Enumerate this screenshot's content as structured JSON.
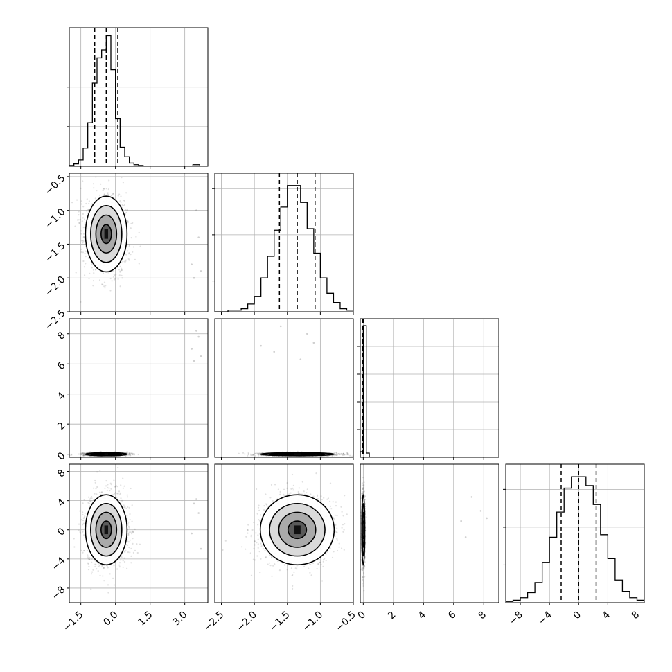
{
  "chart_data": {
    "type": "corner",
    "parameters": 4,
    "panels": [
      {
        "kind": "histogram",
        "row": 0,
        "col": 0,
        "edges": [
          -2.0,
          -1.8,
          -1.6,
          -1.4,
          -1.2,
          -1.0,
          -0.8,
          -0.6,
          -0.4,
          -0.2,
          0.0,
          0.2,
          0.4,
          0.6,
          0.8,
          1.0,
          1.2
        ],
        "counts": [
          1,
          3,
          8,
          23,
          55,
          105,
          137,
          147,
          165,
          122,
          60,
          24,
          12,
          4,
          2,
          1
        ],
        "xlim": [
          -2.0,
          4.0
        ],
        "ylim": [
          0,
          175
        ],
        "yticks": [
          50,
          100
        ],
        "quantiles": [
          -0.9,
          -0.4,
          0.1
        ],
        "outliers": [
          3.5
        ]
      },
      {
        "kind": "scatter",
        "row": 1,
        "col": 0,
        "xlim": [
          -2.0,
          4.0
        ],
        "ylim": [
          -2.5,
          -0.45
        ],
        "center": [
          -0.4,
          -1.35
        ],
        "spread": [
          0.45,
          0.28
        ],
        "outliers": [
          [
            3.5,
            -1.0
          ],
          [
            3.6,
            -1.4
          ],
          [
            3.3,
            -1.8
          ],
          [
            3.7,
            -1.9
          ],
          [
            3.4,
            -2.0
          ]
        ],
        "yticks": [
          -2.5,
          -2.0,
          -1.5,
          -1.0,
          -0.5
        ],
        "yticklabels": [
          "−2.5",
          "−2.0",
          "−1.5",
          "−1.0",
          "−0.5"
        ]
      },
      {
        "kind": "histogram",
        "row": 1,
        "col": 1,
        "edges": [
          -2.6,
          -2.4,
          -2.2,
          -2.1,
          -2.0,
          -1.9,
          -1.8,
          -1.7,
          -1.6,
          -1.5,
          -1.4,
          -1.3,
          -1.2,
          -1.1,
          -1.0,
          -0.9,
          -0.8,
          -0.7,
          -0.6,
          -0.5
        ],
        "counts": [
          0,
          1,
          2,
          5,
          10,
          22,
          36,
          53,
          68,
          82,
          82,
          71,
          54,
          38,
          22,
          12,
          6,
          2,
          1
        ],
        "xlim": [
          -2.6,
          -0.5
        ],
        "ylim": [
          0,
          90
        ],
        "yticks": [
          20,
          50,
          80
        ],
        "quantiles": [
          -1.62,
          -1.35,
          -1.08
        ]
      },
      {
        "kind": "scatter",
        "row": 2,
        "col": 0,
        "xlim": [
          -2.0,
          4.0
        ],
        "ylim": [
          -0.2,
          9.0
        ],
        "center": [
          -0.4,
          0.0
        ],
        "spread": [
          0.45,
          0.05
        ],
        "outliers": [
          [
            3.5,
            8.2
          ],
          [
            3.6,
            7.8
          ],
          [
            3.3,
            7.0
          ],
          [
            3.7,
            6.5
          ],
          [
            3.4,
            6.2
          ]
        ],
        "yticks": [
          0,
          2,
          4,
          6,
          8
        ],
        "yticklabels": [
          "0",
          "2",
          "4",
          "6",
          "8"
        ]
      },
      {
        "kind": "scatter",
        "row": 2,
        "col": 1,
        "xlim": [
          -2.6,
          -0.5
        ],
        "ylim": [
          -0.2,
          9.0
        ],
        "center": [
          -1.35,
          0.0
        ],
        "spread": [
          0.28,
          0.05
        ],
        "outliers": [
          [
            -1.6,
            8.5
          ],
          [
            -1.9,
            7.2
          ],
          [
            -1.7,
            6.8
          ],
          [
            -1.2,
            8.0
          ],
          [
            -1.1,
            7.4
          ],
          [
            -1.3,
            6.3
          ]
        ]
      },
      {
        "kind": "histogram",
        "row": 2,
        "col": 2,
        "edges": [
          -0.2,
          0.0,
          0.2,
          0.4
        ],
        "counts": [
          40,
          950,
          30
        ],
        "xlim": [
          -0.2,
          9.0
        ],
        "ylim": [
          0,
          1000
        ],
        "yticks": [
          200,
          400,
          600,
          800
        ],
        "quantiles": [
          -0.04,
          0.0,
          0.04
        ]
      },
      {
        "kind": "scatter",
        "row": 3,
        "col": 0,
        "xlim": [
          -2.0,
          4.0
        ],
        "ylim": [
          -10.0,
          9.0
        ],
        "center": [
          -0.4,
          0.0
        ],
        "spread": [
          0.45,
          2.4
        ],
        "outliers": [
          [
            3.5,
            4.2
          ],
          [
            3.6,
            2.3
          ],
          [
            3.3,
            -0.5
          ],
          [
            3.7,
            -2.6
          ],
          [
            3.4,
            3.6
          ]
        ],
        "yticks": [
          -8,
          -4,
          0,
          4,
          8
        ],
        "yticklabels": [
          "−8",
          "−4",
          "0",
          "4",
          "8"
        ],
        "xticks": [
          -1.5,
          0.0,
          1.5,
          3.0
        ],
        "xticklabels": [
          "−1.5",
          "0.0",
          "1.5",
          "3.0"
        ]
      },
      {
        "kind": "scatter",
        "row": 3,
        "col": 1,
        "xlim": [
          -2.6,
          -0.5
        ],
        "ylim": [
          -10.0,
          9.0
        ],
        "center": [
          -1.35,
          0.0
        ],
        "spread": [
          0.28,
          2.4
        ],
        "outliers": [],
        "xticks": [
          -2.5,
          -2.0,
          -1.5,
          -1.0,
          -0.5
        ],
        "xticklabels": [
          "−2.5",
          "−2.0",
          "−1.5",
          "−1.0",
          "−0.5"
        ]
      },
      {
        "kind": "scatter",
        "row": 3,
        "col": 2,
        "xlim": [
          -0.2,
          9.0
        ],
        "ylim": [
          -10.0,
          9.0
        ],
        "center": [
          0.0,
          0.0
        ],
        "spread": [
          0.05,
          2.4
        ],
        "outliers": [
          [
            6.5,
            1.2
          ],
          [
            7.2,
            4.5
          ],
          [
            6.8,
            -1.0
          ],
          [
            7.8,
            2.6
          ],
          [
            8.2,
            1.6
          ]
        ],
        "xticks": [
          0,
          2,
          4,
          6,
          8
        ],
        "xticklabels": [
          "0",
          "2",
          "4",
          "6",
          "8"
        ]
      },
      {
        "kind": "histogram",
        "row": 3,
        "col": 3,
        "edges": [
          -10,
          -9,
          -8,
          -7,
          -6,
          -5,
          -4,
          -3,
          -2,
          -1,
          0,
          1,
          2,
          3,
          4,
          5,
          6,
          7,
          8,
          9
        ],
        "counts": [
          1,
          2,
          4,
          8,
          16,
          32,
          52,
          72,
          91,
          100,
          100,
          93,
          78,
          54,
          35,
          18,
          9,
          4,
          2
        ],
        "xlim": [
          -10,
          9.0
        ],
        "ylim": [
          0,
          110
        ],
        "yticks": [
          30,
          60,
          90
        ],
        "quantiles": [
          -2.4,
          0.0,
          2.4
        ],
        "xticks": [
          -8,
          -4,
          0,
          4,
          8
        ],
        "xticklabels": [
          "−8",
          "−4",
          "0",
          "4",
          "8"
        ]
      }
    ]
  }
}
